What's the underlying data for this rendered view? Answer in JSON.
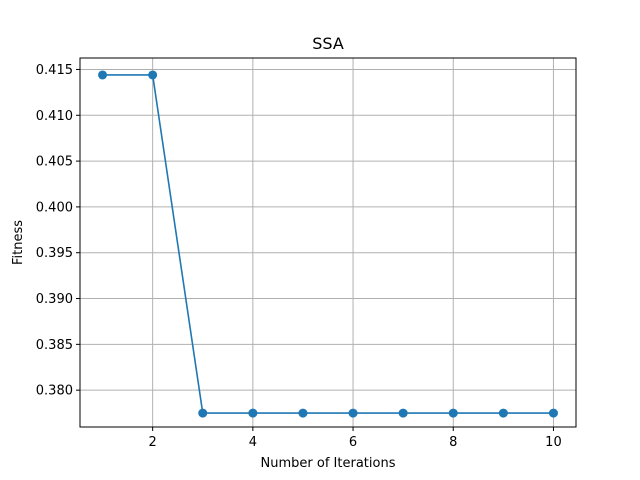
{
  "chart_data": {
    "type": "line",
    "title": "SSA",
    "xlabel": "Number of Iterations",
    "ylabel": "Fitness",
    "x": [
      1,
      2,
      3,
      4,
      5,
      6,
      7,
      8,
      9,
      10
    ],
    "series": [
      {
        "values": [
          0.4144,
          0.4144,
          0.3775,
          0.3775,
          0.3775,
          0.3775,
          0.3775,
          0.3775,
          0.3775,
          0.3775
        ],
        "color": "#1f77b4",
        "marker": "circle"
      }
    ],
    "xlim": [
      0.55,
      10.45
    ],
    "ylim": [
      0.37598,
      0.41625
    ],
    "xticks": [
      2,
      4,
      6,
      8,
      10
    ],
    "xtick_labels": [
      "2",
      "4",
      "6",
      "8",
      "10"
    ],
    "yticks": [
      0.38,
      0.385,
      0.39,
      0.395,
      0.4,
      0.405,
      0.41,
      0.415
    ],
    "ytick_labels": [
      "0.380",
      "0.385",
      "0.390",
      "0.395",
      "0.400",
      "0.405",
      "0.410",
      "0.415"
    ],
    "grid": true,
    "grid_color": "#b0b0b0"
  }
}
